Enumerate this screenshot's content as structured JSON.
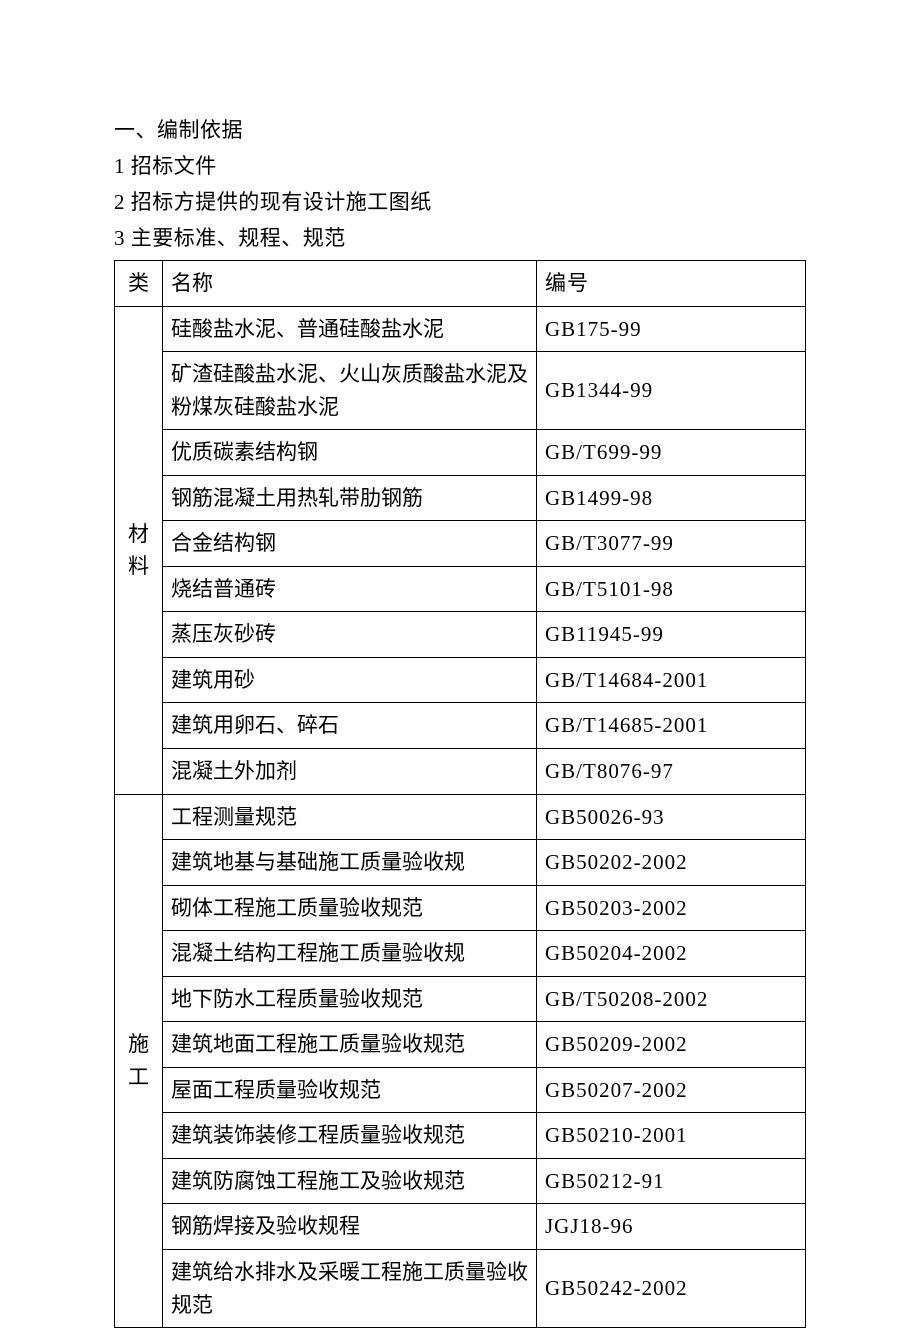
{
  "headings": {
    "h1": "一、编制依据",
    "h2": "1 招标文件",
    "h3": "2 招标方提供的现有设计施工图纸",
    "h4": "3 主要标准、规程、规范"
  },
  "table": {
    "header": {
      "category": "类",
      "name": "名称",
      "code": "编号"
    },
    "section1": {
      "category_char1": "材",
      "category_char2": "料",
      "rows": [
        {
          "name": "硅酸盐水泥、普通硅酸盐水泥",
          "code": "GB175-99"
        },
        {
          "name": "矿渣硅酸盐水泥、火山灰质酸盐水泥及粉煤灰硅酸盐水泥",
          "code": "GB1344-99"
        },
        {
          "name": "优质碳素结构钢",
          "code": "GB/T699-99"
        },
        {
          "name": "钢筋混凝土用热轧带肋钢筋",
          "code": "GB1499-98"
        },
        {
          "name": "合金结构钢",
          "code": "GB/T3077-99"
        },
        {
          "name": "烧结普通砖",
          "code": "GB/T5101-98"
        },
        {
          "name": "蒸压灰砂砖",
          "code": "GB11945-99"
        },
        {
          "name": "建筑用砂",
          "code": "GB/T14684-2001"
        },
        {
          "name": "建筑用卵石、碎石",
          "code": "GB/T14685-2001"
        },
        {
          "name": "混凝土外加剂",
          "code": "GB/T8076-97"
        }
      ]
    },
    "section2": {
      "category_char1": "施",
      "category_char2": "工",
      "rows": [
        {
          "name": "工程测量规范",
          "code": "GB50026-93"
        },
        {
          "name": "建筑地基与基础施工质量验收规",
          "code": "GB50202-2002"
        },
        {
          "name": "砌体工程施工质量验收规范",
          "code": "GB50203-2002"
        },
        {
          "name": "混凝土结构工程施工质量验收规",
          "code": "GB50204-2002"
        },
        {
          "name": "地下防水工程质量验收规范",
          "code": "GB/T50208-2002"
        },
        {
          "name": "建筑地面工程施工质量验收规范",
          "code": "GB50209-2002"
        },
        {
          "name": "屋面工程质量验收规范",
          "code": "GB50207-2002"
        },
        {
          "name": "建筑装饰装修工程质量验收规范",
          "code": "GB50210-2001"
        },
        {
          "name": "建筑防腐蚀工程施工及验收规范",
          "code": "GB50212-91"
        },
        {
          "name": "钢筋焊接及验收规程",
          "code": "JGJ18-96"
        },
        {
          "name": "建筑给水排水及采暖工程施工质量验收规范",
          "code": "GB50242-2002"
        }
      ]
    }
  }
}
